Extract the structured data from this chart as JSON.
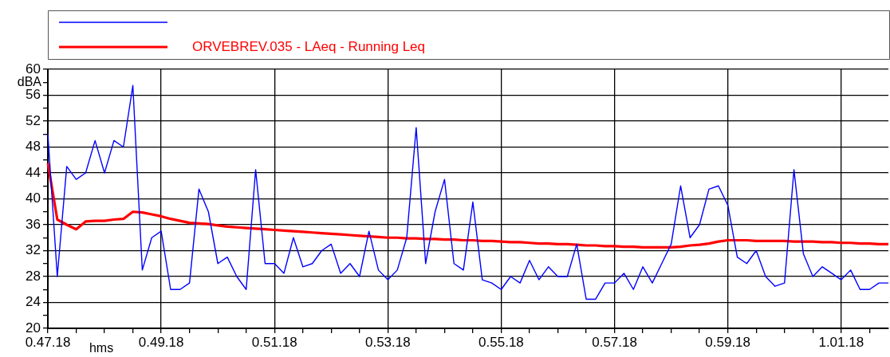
{
  "chart_data": {
    "type": "line",
    "xlabel": "hms",
    "ylabel": "dBA",
    "legend": "top",
    "grid": true,
    "categories": [
      "0.47.18",
      null,
      null,
      null,
      null,
      null,
      null,
      null,
      null,
      null,
      null,
      null,
      "0.49.18",
      null,
      null,
      null,
      null,
      null,
      null,
      null,
      null,
      null,
      null,
      null,
      "0.51.18",
      null,
      null,
      null,
      null,
      null,
      null,
      null,
      null,
      null,
      null,
      null,
      "0.53.18",
      null,
      null,
      null,
      null,
      null,
      null,
      null,
      null,
      null,
      null,
      null,
      "0.55.18",
      null,
      null,
      null,
      null,
      null,
      null,
      null,
      null,
      null,
      null,
      null,
      "0.57.18",
      null,
      null,
      null,
      null,
      null,
      null,
      null,
      null,
      null,
      null,
      null,
      "0.59.18",
      null,
      null,
      null,
      null,
      null,
      null,
      null,
      null,
      null,
      null,
      null,
      "1.01.18",
      null,
      null,
      null,
      null,
      null
    ],
    "ylim": [
      20,
      60
    ],
    "yticks": [
      20,
      {
        "value": 22,
        "label": null
      },
      24,
      {
        "value": 26,
        "label": null
      },
      28,
      {
        "value": 30,
        "label": null
      },
      32,
      {
        "value": 34,
        "label": null
      },
      36,
      {
        "value": 38,
        "label": null
      },
      40,
      {
        "value": 42,
        "label": null
      },
      44,
      {
        "value": 46,
        "label": null
      },
      48,
      {
        "value": 50,
        "label": null
      },
      52,
      {
        "value": 54,
        "label": null
      },
      56,
      {
        "value": 58,
        "label": null
      },
      60
    ],
    "series": [
      {
        "color": "#0000ff",
        "values": [
          50,
          28,
          45,
          43,
          44,
          49,
          44,
          49,
          48,
          57.5,
          29,
          34,
          35,
          26,
          26,
          27,
          41.5,
          38,
          30,
          31,
          28,
          26,
          44.5,
          30,
          30,
          28.5,
          34,
          29.5,
          30,
          32,
          33,
          28.5,
          30,
          28,
          35,
          29,
          27.5,
          29,
          34,
          51,
          30,
          38,
          43,
          30,
          29,
          39.5,
          27.5,
          27,
          26,
          28,
          27,
          30.5,
          27.5,
          29.5,
          28,
          28,
          33,
          24.5,
          24.5,
          27,
          27,
          28.5,
          26,
          29.5,
          27,
          30,
          33,
          42,
          34,
          36,
          41.5,
          42,
          39,
          31,
          30,
          32,
          28,
          26.5,
          27,
          44.5,
          31.5,
          28,
          29.5,
          28.5,
          27.5,
          29,
          26,
          26,
          27,
          27
        ]
      },
      {
        "name": "ORVEBREV.035 - LAeq - Running Leq",
        "color": "#ff0000",
        "values": [
          45.5,
          36.8,
          36,
          35.3,
          36.5,
          36.6,
          36.6,
          36.8,
          36.9,
          38,
          37.9,
          37.6,
          37.3,
          36.9,
          36.6,
          36.3,
          36.2,
          36.1,
          35.9,
          35.7,
          35.6,
          35.5,
          35.4,
          35.3,
          35.2,
          35.1,
          35,
          34.9,
          34.8,
          34.7,
          34.6,
          34.5,
          34.4,
          34.3,
          34.2,
          34.1,
          34,
          34,
          33.9,
          33.9,
          33.8,
          33.8,
          33.7,
          33.7,
          33.6,
          33.6,
          33.5,
          33.5,
          33.4,
          33.3,
          33.3,
          33.2,
          33.1,
          33.1,
          33,
          33,
          32.9,
          32.8,
          32.8,
          32.7,
          32.7,
          32.6,
          32.6,
          32.5,
          32.5,
          32.5,
          32.5,
          32.6,
          32.8,
          32.9,
          33.1,
          33.4,
          33.6,
          33.6,
          33.6,
          33.5,
          33.5,
          33.5,
          33.5,
          33.4,
          33.4,
          33.4,
          33.3,
          33.3,
          33.2,
          33.2,
          33.1,
          33.1,
          33,
          33
        ]
      }
    ]
  }
}
